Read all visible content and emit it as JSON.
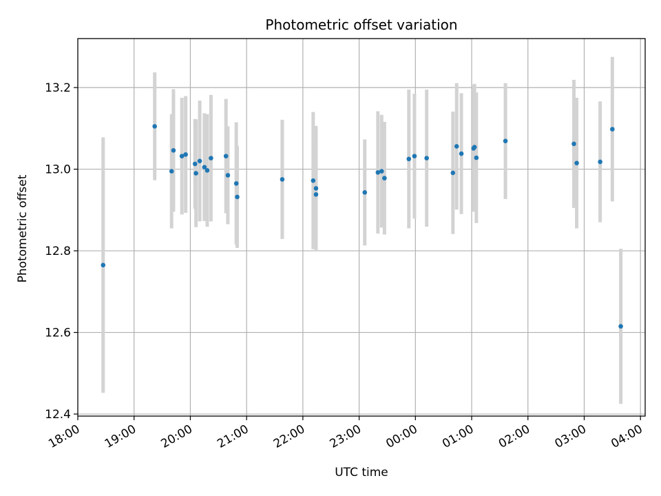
{
  "chart_data": {
    "type": "scatter",
    "title": "Photometric offset variation",
    "xlabel": "UTC time",
    "ylabel": "Photometric offset",
    "x_axis_kind": "datetime",
    "xlim": [
      "18:00",
      "04:05"
    ],
    "ylim": [
      12.395,
      13.32
    ],
    "grid": true,
    "x_ticks": [
      "18:00",
      "19:00",
      "20:00",
      "21:00",
      "22:00",
      "23:00",
      "00:00",
      "01:00",
      "02:00",
      "03:00",
      "04:00"
    ],
    "y_ticks": [
      "12.4",
      "12.6",
      "12.8",
      "13.0",
      "13.2"
    ],
    "colors": {
      "point": "#1f77b4",
      "errorbar": "#d3d3d3",
      "grid": "#b0b0b0"
    },
    "points": [
      {
        "time": "18:27",
        "value": 12.765,
        "err": 0.313
      },
      {
        "time": "19:22",
        "value": 13.105,
        "err": 0.132
      },
      {
        "time": "19:40",
        "value": 12.995,
        "err": 0.14
      },
      {
        "time": "19:42",
        "value": 13.046,
        "err": 0.15
      },
      {
        "time": "19:51",
        "value": 13.032,
        "err": 0.143
      },
      {
        "time": "19:55",
        "value": 13.036,
        "err": 0.143
      },
      {
        "time": "20:05",
        "value": 13.013,
        "err": 0.11
      },
      {
        "time": "20:06",
        "value": 12.99,
        "err": 0.132
      },
      {
        "time": "20:10",
        "value": 13.02,
        "err": 0.148
      },
      {
        "time": "20:15",
        "value": 13.005,
        "err": 0.132
      },
      {
        "time": "20:18",
        "value": 12.997,
        "err": 0.138
      },
      {
        "time": "20:22",
        "value": 13.027,
        "err": 0.155
      },
      {
        "time": "20:38",
        "value": 13.032,
        "err": 0.14
      },
      {
        "time": "20:40",
        "value": 12.985,
        "err": 0.12
      },
      {
        "time": "20:49",
        "value": 12.965,
        "err": 0.15
      },
      {
        "time": "20:50",
        "value": 12.932,
        "err": 0.125
      },
      {
        "time": "21:38",
        "value": 12.975,
        "err": 0.146
      },
      {
        "time": "22:11",
        "value": 12.972,
        "err": 0.168
      },
      {
        "time": "22:14",
        "value": 12.953,
        "err": 0.153
      },
      {
        "time": "22:14",
        "value": 12.938,
        "err": 0.11
      },
      {
        "time": "23:06",
        "value": 12.943,
        "err": 0.13
      },
      {
        "time": "23:20",
        "value": 12.992,
        "err": 0.15
      },
      {
        "time": "23:24",
        "value": 12.995,
        "err": 0.138
      },
      {
        "time": "23:27",
        "value": 12.978,
        "err": 0.138
      },
      {
        "time": "23:53",
        "value": 13.025,
        "err": 0.17
      },
      {
        "time": "23:59",
        "value": 13.032,
        "err": 0.153
      },
      {
        "time": "00:12",
        "value": 13.027,
        "err": 0.168
      },
      {
        "time": "00:40",
        "value": 12.991,
        "err": 0.15
      },
      {
        "time": "00:44",
        "value": 13.056,
        "err": 0.155
      },
      {
        "time": "00:49",
        "value": 13.038,
        "err": 0.148
      },
      {
        "time": "01:02",
        "value": 13.051,
        "err": 0.155
      },
      {
        "time": "01:03",
        "value": 13.054,
        "err": 0.155
      },
      {
        "time": "01:05",
        "value": 13.028,
        "err": 0.16
      },
      {
        "time": "01:36",
        "value": 13.069,
        "err": 0.142
      },
      {
        "time": "02:49",
        "value": 13.062,
        "err": 0.157
      },
      {
        "time": "02:52",
        "value": 13.015,
        "err": 0.16
      },
      {
        "time": "03:17",
        "value": 13.018,
        "err": 0.148
      },
      {
        "time": "03:30",
        "value": 13.098,
        "err": 0.177
      },
      {
        "time": "03:39",
        "value": 12.615,
        "err": 0.19
      }
    ]
  }
}
